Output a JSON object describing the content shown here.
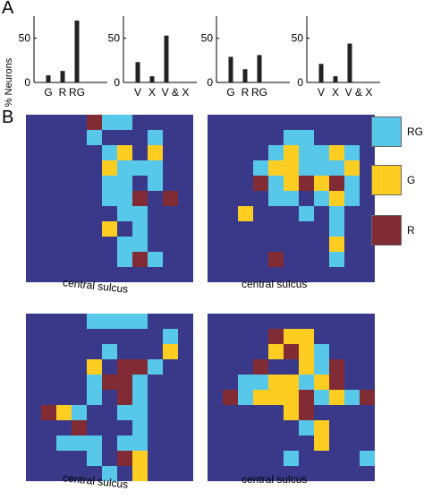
{
  "panel_a": {
    "letter": "A",
    "ylabel": "% Neurons",
    "yticks": [
      "0",
      "50"
    ]
  },
  "panel_b": {
    "letter": "B",
    "captions": [
      "central sulcus",
      "central sulcus",
      "central sulcus",
      "central sulcus"
    ],
    "legend": [
      {
        "label": "RG",
        "color": "#57c7ea"
      },
      {
        "label": "G",
        "color": "#fecd22"
      },
      {
        "label": "R",
        "color": "#812b34"
      }
    ],
    "background_color": "#3a3989"
  },
  "chart_data": [
    {
      "type": "bar",
      "categories": [
        "G",
        "R",
        "RG"
      ],
      "values": [
        8,
        13,
        70
      ],
      "ylabel": "% Neurons",
      "ylim": [
        0,
        75
      ]
    },
    {
      "type": "bar",
      "categories": [
        "V",
        "X",
        "V & X"
      ],
      "values": [
        23,
        7,
        53
      ],
      "ylim": [
        0,
        75
      ]
    },
    {
      "type": "bar",
      "categories": [
        "G",
        "R",
        "RG"
      ],
      "values": [
        29,
        15,
        31
      ],
      "ylim": [
        0,
        75
      ]
    },
    {
      "type": "bar",
      "categories": [
        "V",
        "X",
        "V & X"
      ],
      "values": [
        21,
        7,
        44
      ],
      "ylim": [
        0,
        75
      ]
    },
    {
      "type": "heatmap",
      "rows": 11,
      "cols": 11,
      "codes": {
        "1": "RG",
        "2": "G",
        "3": "R"
      },
      "cells": [
        [
          0,
          0,
          0,
          0,
          3,
          1,
          1,
          0,
          0,
          0,
          0
        ],
        [
          0,
          0,
          0,
          0,
          1,
          0,
          0,
          0,
          1,
          0,
          0
        ],
        [
          0,
          0,
          0,
          0,
          0,
          1,
          2,
          0,
          2,
          0,
          0
        ],
        [
          0,
          0,
          0,
          0,
          0,
          2,
          1,
          1,
          1,
          0,
          0
        ],
        [
          0,
          0,
          0,
          0,
          0,
          1,
          1,
          0,
          1,
          0,
          0
        ],
        [
          0,
          0,
          0,
          0,
          0,
          1,
          1,
          3,
          0,
          3,
          0
        ],
        [
          0,
          0,
          0,
          0,
          0,
          0,
          1,
          1,
          0,
          0,
          0
        ],
        [
          0,
          0,
          0,
          0,
          0,
          2,
          0,
          1,
          0,
          0,
          0
        ],
        [
          0,
          0,
          0,
          0,
          0,
          0,
          1,
          1,
          0,
          0,
          0
        ],
        [
          0,
          0,
          0,
          0,
          0,
          0,
          1,
          3,
          1,
          0,
          0
        ],
        [
          0,
          0,
          0,
          0,
          0,
          0,
          0,
          0,
          0,
          0,
          0
        ]
      ]
    },
    {
      "type": "heatmap",
      "rows": 11,
      "cols": 11,
      "codes": {
        "1": "RG",
        "2": "G",
        "3": "R"
      },
      "cells": [
        [
          0,
          0,
          0,
          0,
          0,
          0,
          0,
          0,
          0,
          0,
          0
        ],
        [
          0,
          0,
          0,
          0,
          0,
          1,
          1,
          0,
          0,
          0,
          0
        ],
        [
          0,
          0,
          0,
          0,
          1,
          2,
          1,
          1,
          2,
          1,
          0
        ],
        [
          0,
          0,
          0,
          1,
          2,
          2,
          1,
          1,
          1,
          2,
          0
        ],
        [
          0,
          0,
          0,
          3,
          1,
          2,
          3,
          2,
          3,
          1,
          0
        ],
        [
          0,
          0,
          0,
          0,
          1,
          1,
          0,
          1,
          2,
          1,
          0
        ],
        [
          0,
          0,
          2,
          0,
          0,
          0,
          1,
          0,
          1,
          0,
          0
        ],
        [
          0,
          0,
          0,
          0,
          0,
          0,
          0,
          0,
          1,
          0,
          0
        ],
        [
          0,
          0,
          0,
          0,
          0,
          0,
          0,
          0,
          2,
          0,
          0
        ],
        [
          0,
          0,
          0,
          0,
          3,
          0,
          0,
          0,
          1,
          0,
          0
        ],
        [
          0,
          0,
          0,
          0,
          0,
          0,
          0,
          0,
          0,
          0,
          0
        ]
      ]
    },
    {
      "type": "heatmap",
      "rows": 11,
      "cols": 11,
      "codes": {
        "1": "RG",
        "2": "G",
        "3": "R"
      },
      "cells": [
        [
          0,
          0,
          0,
          0,
          1,
          1,
          1,
          1,
          0,
          0,
          0
        ],
        [
          0,
          0,
          0,
          0,
          0,
          0,
          0,
          0,
          0,
          1,
          0
        ],
        [
          0,
          0,
          0,
          0,
          0,
          1,
          0,
          0,
          0,
          2,
          0
        ],
        [
          0,
          0,
          0,
          0,
          2,
          0,
          3,
          3,
          1,
          0,
          0
        ],
        [
          0,
          0,
          0,
          0,
          1,
          3,
          3,
          1,
          0,
          0,
          0
        ],
        [
          0,
          0,
          0,
          0,
          1,
          0,
          3,
          1,
          0,
          0,
          0
        ],
        [
          0,
          3,
          2,
          1,
          0,
          0,
          1,
          1,
          0,
          0,
          0
        ],
        [
          0,
          0,
          0,
          3,
          0,
          0,
          0,
          1,
          0,
          0,
          0
        ],
        [
          0,
          0,
          1,
          1,
          1,
          0,
          1,
          1,
          0,
          0,
          0
        ],
        [
          0,
          0,
          0,
          0,
          1,
          0,
          3,
          2,
          0,
          0,
          0
        ],
        [
          0,
          0,
          0,
          0,
          0,
          1,
          0,
          2,
          0,
          0,
          0
        ]
      ]
    },
    {
      "type": "heatmap",
      "rows": 11,
      "cols": 11,
      "codes": {
        "1": "RG",
        "2": "G",
        "3": "R"
      },
      "cells": [
        [
          0,
          0,
          0,
          0,
          0,
          0,
          0,
          0,
          0,
          0,
          0
        ],
        [
          0,
          0,
          0,
          0,
          3,
          2,
          2,
          0,
          0,
          0,
          0
        ],
        [
          0,
          0,
          0,
          0,
          2,
          3,
          2,
          1,
          0,
          0,
          0
        ],
        [
          0,
          0,
          0,
          3,
          0,
          0,
          2,
          1,
          3,
          0,
          0
        ],
        [
          0,
          0,
          1,
          1,
          2,
          2,
          1,
          2,
          3,
          0,
          0
        ],
        [
          0,
          3,
          1,
          2,
          2,
          2,
          3,
          1,
          2,
          1,
          3
        ],
        [
          0,
          0,
          0,
          0,
          0,
          2,
          3,
          0,
          0,
          0,
          0
        ],
        [
          0,
          0,
          0,
          0,
          0,
          0,
          1,
          2,
          0,
          0,
          0
        ],
        [
          0,
          0,
          0,
          0,
          0,
          0,
          0,
          2,
          0,
          0,
          0
        ],
        [
          0,
          0,
          0,
          0,
          0,
          1,
          0,
          0,
          0,
          0,
          1
        ],
        [
          0,
          0,
          0,
          0,
          0,
          0,
          0,
          0,
          0,
          0,
          0
        ]
      ]
    }
  ]
}
